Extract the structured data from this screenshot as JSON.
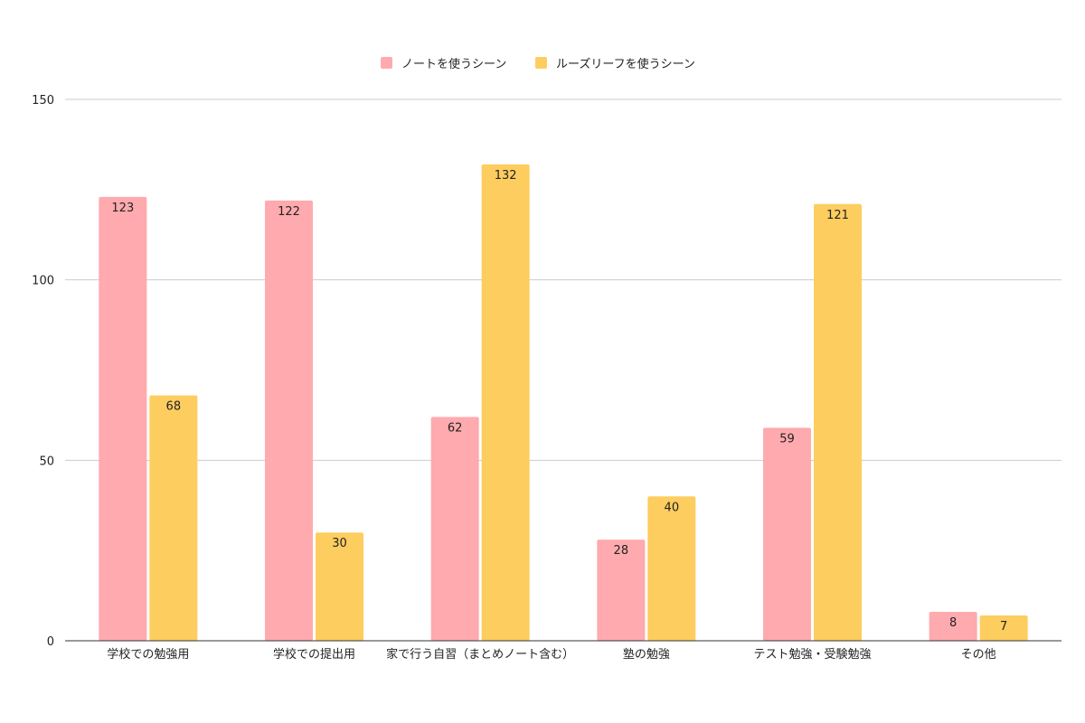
{
  "chart_data": {
    "type": "bar",
    "categories": [
      "学校での勉強用",
      "学校での提出用",
      "家で行う自習（まとめノート含む）",
      "塾の勉強",
      "テスト勉強・受験勉強",
      "その他"
    ],
    "series": [
      {
        "name": "ノートを使うシーン",
        "color": "#ffaaae",
        "values": [
          123,
          122,
          62,
          28,
          59,
          8
        ]
      },
      {
        "name": "ルーズリーフを使うシーン",
        "color": "#fdcd5f",
        "values": [
          68,
          30,
          132,
          40,
          121,
          7
        ]
      }
    ],
    "yticks": [
      0,
      50,
      100,
      150
    ],
    "ylim": [
      0,
      150
    ],
    "grid": true,
    "legend_position": "top-center",
    "data_labels": true
  }
}
